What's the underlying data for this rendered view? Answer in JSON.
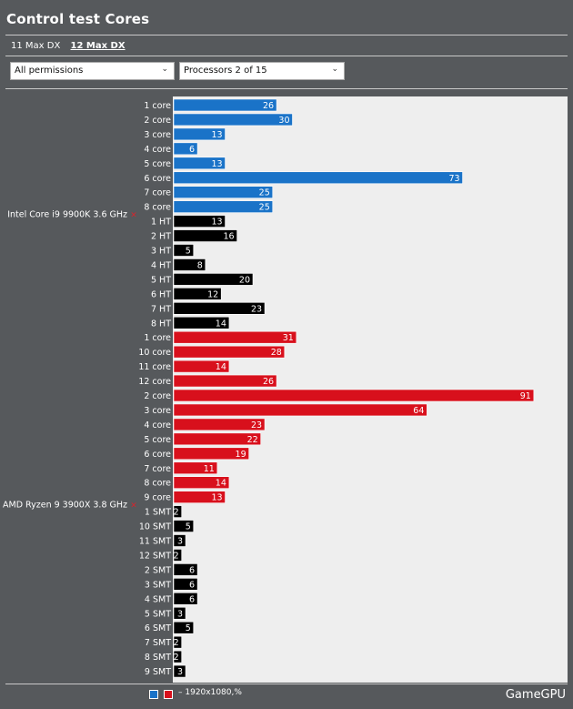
{
  "title": "Control test Cores",
  "tabs": [
    {
      "label": "11 Max DX",
      "active": false
    },
    {
      "label": "12 Max DX",
      "active": true
    }
  ],
  "filters": {
    "permissions": "All permissions",
    "processors": "Processors 2 of 15"
  },
  "legend": {
    "text": "– 1920x1080,%",
    "colors": [
      "#1a73c8",
      "#d8101c"
    ]
  },
  "brand": "GameGPU",
  "colors": {
    "intel": "#1a73c8",
    "amd": "#d8101c",
    "thread": "#000000",
    "plot_bg": "#eeeeee"
  },
  "chart_data": {
    "type": "bar",
    "orientation": "horizontal",
    "xlim": [
      0,
      100
    ],
    "groups": [
      {
        "name": "Intel Core i9 9900K 3.6 GHz",
        "bars": [
          {
            "label": "1 core",
            "value": 26,
            "kind": "core"
          },
          {
            "label": "2 core",
            "value": 30,
            "kind": "core"
          },
          {
            "label": "3 core",
            "value": 13,
            "kind": "core"
          },
          {
            "label": "4 core",
            "value": 6,
            "kind": "core"
          },
          {
            "label": "5 core",
            "value": 13,
            "kind": "core"
          },
          {
            "label": "6 core",
            "value": 73,
            "kind": "core"
          },
          {
            "label": "7 core",
            "value": 25,
            "kind": "core"
          },
          {
            "label": "8 core",
            "value": 25,
            "kind": "core"
          },
          {
            "label": "1 HT",
            "value": 13,
            "kind": "thread"
          },
          {
            "label": "2 HT",
            "value": 16,
            "kind": "thread"
          },
          {
            "label": "3 HT",
            "value": 5,
            "kind": "thread"
          },
          {
            "label": "4 HT",
            "value": 8,
            "kind": "thread"
          },
          {
            "label": "5 HT",
            "value": 20,
            "kind": "thread"
          },
          {
            "label": "6 HT",
            "value": 12,
            "kind": "thread"
          },
          {
            "label": "7 HT",
            "value": 23,
            "kind": "thread"
          },
          {
            "label": "8 HT",
            "value": 14,
            "kind": "thread"
          }
        ]
      },
      {
        "name": "AMD Ryzen 9 3900X 3.8 GHz",
        "bars": [
          {
            "label": "1 core",
            "value": 31,
            "kind": "core"
          },
          {
            "label": "10 core",
            "value": 28,
            "kind": "core"
          },
          {
            "label": "11 core",
            "value": 14,
            "kind": "core"
          },
          {
            "label": "12 core",
            "value": 26,
            "kind": "core"
          },
          {
            "label": "2 core",
            "value": 91,
            "kind": "core"
          },
          {
            "label": "3 core",
            "value": 64,
            "kind": "core"
          },
          {
            "label": "4 core",
            "value": 23,
            "kind": "core"
          },
          {
            "label": "5 core",
            "value": 22,
            "kind": "core"
          },
          {
            "label": "6 core",
            "value": 19,
            "kind": "core"
          },
          {
            "label": "7 core",
            "value": 11,
            "kind": "core"
          },
          {
            "label": "8 core",
            "value": 14,
            "kind": "core"
          },
          {
            "label": "9 core",
            "value": 13,
            "kind": "core"
          },
          {
            "label": "1 SMT",
            "value": 2,
            "kind": "thread"
          },
          {
            "label": "10 SMT",
            "value": 5,
            "kind": "thread"
          },
          {
            "label": "11 SMT",
            "value": 3,
            "kind": "thread"
          },
          {
            "label": "12 SMT",
            "value": 2,
            "kind": "thread"
          },
          {
            "label": "2 SMT",
            "value": 6,
            "kind": "thread"
          },
          {
            "label": "3 SMT",
            "value": 6,
            "kind": "thread"
          },
          {
            "label": "4 SMT",
            "value": 6,
            "kind": "thread"
          },
          {
            "label": "5 SMT",
            "value": 3,
            "kind": "thread"
          },
          {
            "label": "6 SMT",
            "value": 5,
            "kind": "thread"
          },
          {
            "label": "7 SMT",
            "value": 2,
            "kind": "thread"
          },
          {
            "label": "8 SMT",
            "value": 2,
            "kind": "thread"
          },
          {
            "label": "9 SMT",
            "value": 3,
            "kind": "thread"
          }
        ]
      }
    ]
  }
}
